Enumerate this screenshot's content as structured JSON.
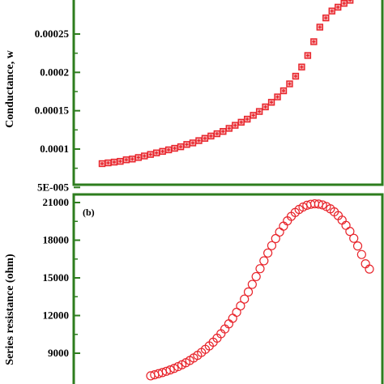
{
  "colors": {
    "frame": "#2e7d1e",
    "marker": "#e8232a",
    "marker_fill_a": "#f4a6a8"
  },
  "chart_data": [
    {
      "type": "scatter",
      "panel_label": "",
      "ylabel": "Conductance, w",
      "ylim": [
        5e-05,
        0.0003
      ],
      "y_ticks": [
        {
          "value": 5e-05,
          "label": "5E-005"
        },
        {
          "value": 0.0001,
          "label": "0.0001"
        },
        {
          "value": 0.00015,
          "label": "0.00015"
        },
        {
          "value": 0.0002,
          "label": "0.0002"
        },
        {
          "value": 0.00025,
          "label": "0.00025"
        }
      ],
      "marker": "square-filled",
      "series": [
        {
          "values": [
            8.1e-05,
            8.2e-05,
            8.3e-05,
            8.4e-05,
            8.6e-05,
            8.7e-05,
            8.9e-05,
            9.1e-05,
            9.3e-05,
            9.5e-05,
            9.7e-05,
            9.9e-05,
            0.000101,
            0.000103,
            0.000106,
            0.000108,
            0.000111,
            0.000114,
            0.000117,
            0.00012,
            0.000123,
            0.000127,
            0.000131,
            0.000135,
            0.000139,
            0.000144,
            0.000149,
            0.000155,
            0.000161,
            0.000168,
            0.000176,
            0.000185,
            0.000195,
            0.000207,
            0.000222,
            0.00024,
            0.000259,
            0.000271,
            0.00028,
            0.000285,
            0.00029,
            0.000294,
            0.000297,
            0.0003,
            0.000303,
            0.000306
          ]
        }
      ]
    },
    {
      "type": "scatter",
      "panel_label": "(b)",
      "ylabel": "Series resistance (ohm)",
      "ylim": [
        6000,
        21500
      ],
      "y_ticks": [
        {
          "value": 9000,
          "label": "9000"
        },
        {
          "value": 12000,
          "label": "12000"
        },
        {
          "value": 15000,
          "label": "15000"
        },
        {
          "value": 18000,
          "label": "18000"
        },
        {
          "value": 21000,
          "label": "21000"
        }
      ],
      "marker": "circle-open",
      "series": [
        {
          "values": [
            7200,
            7280,
            7370,
            7460,
            7560,
            7670,
            7790,
            7930,
            8080,
            8240,
            8420,
            8620,
            8830,
            9060,
            9310,
            9580,
            9880,
            10200,
            10550,
            10930,
            11340,
            11780,
            12260,
            12770,
            13310,
            13880,
            14480,
            15100,
            15730,
            16360,
            16980,
            17570,
            18130,
            18650,
            19120,
            19540,
            19900,
            20210,
            20450,
            20640,
            20780,
            20860,
            20900,
            20880,
            20810,
            20680,
            20500,
            20260,
            19960,
            19600,
            19180,
            18700,
            18150,
            17540,
            16860,
            16120,
            15700
          ]
        }
      ]
    }
  ]
}
